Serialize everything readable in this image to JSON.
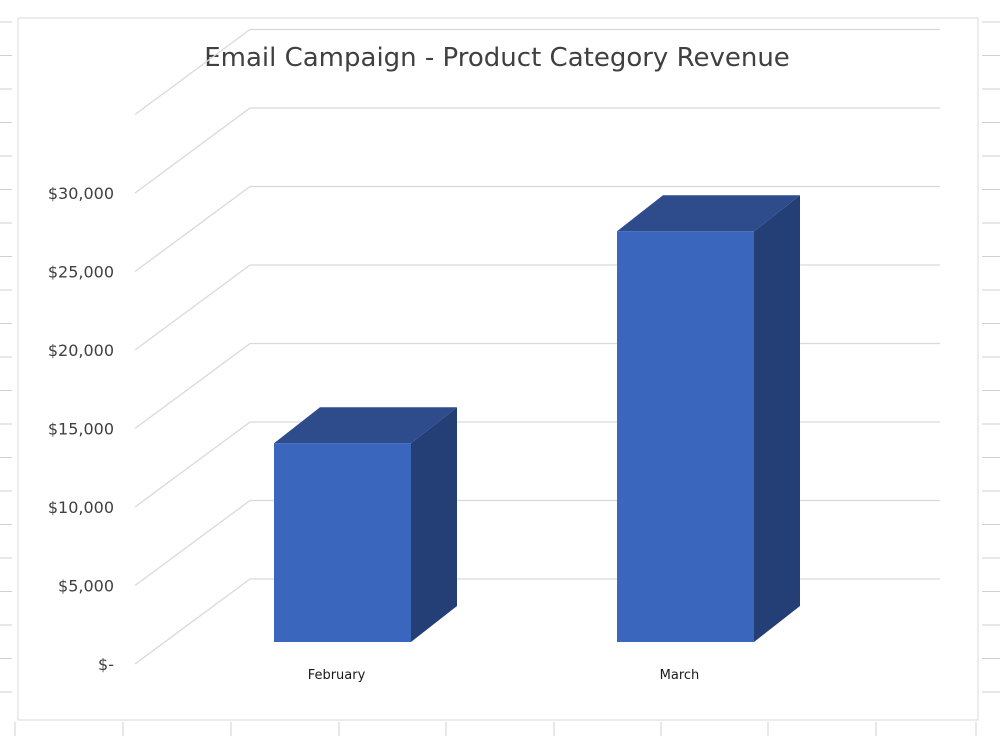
{
  "chart_data": {
    "type": "bar",
    "title": "Email Campaign - Product Category Revenue",
    "categories": [
      "February",
      "March"
    ],
    "values": [
      14000,
      27500
    ],
    "ytick_labels": [
      "$-",
      "$5,000",
      "$10,000",
      "$15,000",
      "$20,000",
      "$25,000",
      "$30,000"
    ],
    "ylim": [
      0,
      35000
    ],
    "grid": true,
    "three_d": true,
    "colors": {
      "bar_front": "#3B66BE",
      "bar_side": "#243E76",
      "bar_top": "#2E4C8C",
      "grid": "#D9D9D9",
      "sheet_grid": "#D0D0D0"
    }
  }
}
